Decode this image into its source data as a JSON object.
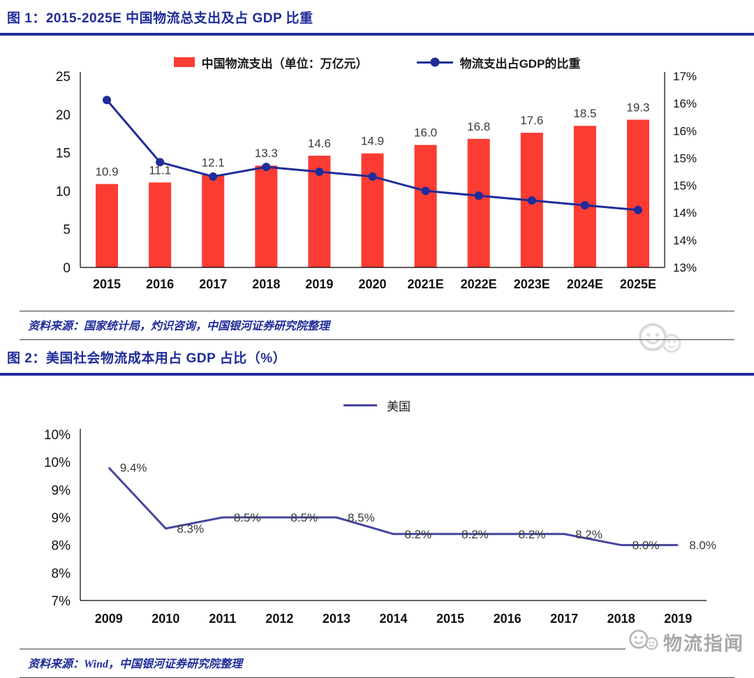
{
  "colors": {
    "bar_red": "#fb3c33",
    "line_navy": "#1f2c99",
    "line_indigo": "#45459d",
    "header_blue": "#2a2d8f",
    "watermark_gray": "#a8a8a8"
  },
  "chart_data": [
    {
      "id": "figure1",
      "type": "bar",
      "title": "图 1：2015-2025E 中国物流总支出及占 GDP 比重",
      "source": "资料来源：国家统计局，灼识咨询，中国银河证券研究院整理",
      "categories": [
        "2015",
        "2016",
        "2017",
        "2018",
        "2019",
        "2020",
        "2021E",
        "2022E",
        "2023E",
        "2024E",
        "2025E"
      ],
      "series": [
        {
          "name": "中国物流支出（单位：万亿元）",
          "type": "bar",
          "yaxis": "left",
          "color_key": "bar_red",
          "values": [
            10.9,
            11.1,
            12.1,
            13.3,
            14.6,
            14.9,
            16.0,
            16.8,
            17.6,
            18.5,
            19.3
          ],
          "labels": [
            "10.9",
            "11.1",
            "12.1",
            "13.3",
            "14.6",
            "14.9",
            "16.0",
            "16.8",
            "17.6",
            "18.5",
            "19.3"
          ],
          "unit": "万亿元"
        },
        {
          "name": "物流支出占GDP的比重",
          "type": "line",
          "yaxis": "right",
          "color_key": "line_navy",
          "values": [
            16.5,
            15.2,
            14.9,
            15.1,
            15.0,
            14.9,
            14.6,
            14.5,
            14.4,
            14.3,
            14.2
          ],
          "unit": "%"
        }
      ],
      "left_axis": {
        "lim": [
          0,
          25
        ],
        "ticks": [
          "25",
          "20",
          "15",
          "10",
          "5",
          "0"
        ]
      },
      "right_axis": {
        "lim": [
          13,
          17
        ],
        "ticks_top_to_bottom": [
          "17%",
          "16%",
          "16%",
          "15%",
          "15%",
          "14%",
          "14%",
          "13%"
        ]
      },
      "legend_position": "top",
      "grid": false
    },
    {
      "id": "figure2",
      "type": "line",
      "title": "图 2：美国社会物流成本用占 GDP 占比（%）",
      "source": "资料来源：Wind，中国银河证券研究院整理",
      "categories": [
        "2009",
        "2010",
        "2011",
        "2012",
        "2013",
        "2014",
        "2015",
        "2016",
        "2017",
        "2018",
        "2019"
      ],
      "series": [
        {
          "name": "美国",
          "type": "line",
          "color_key": "line_indigo",
          "values": [
            9.4,
            8.3,
            8.5,
            8.5,
            8.5,
            8.2,
            8.2,
            8.2,
            8.2,
            8.0,
            8.0
          ],
          "labels": [
            "9.4%",
            "8.3%",
            "8.5%",
            "8.5%",
            "8.5%",
            "8.2%",
            "8.2%",
            "8.2%",
            "8.2%",
            "8.0%",
            "8.0%"
          ],
          "unit": "%"
        }
      ],
      "yaxis": {
        "lim": [
          7,
          10
        ],
        "ticks_top_to_bottom": [
          "10%",
          "10%",
          "9%",
          "9%",
          "8%",
          "8%",
          "7%"
        ]
      },
      "legend_position": "top",
      "grid": false
    }
  ],
  "watermark": {
    "text": "物流指闻"
  }
}
